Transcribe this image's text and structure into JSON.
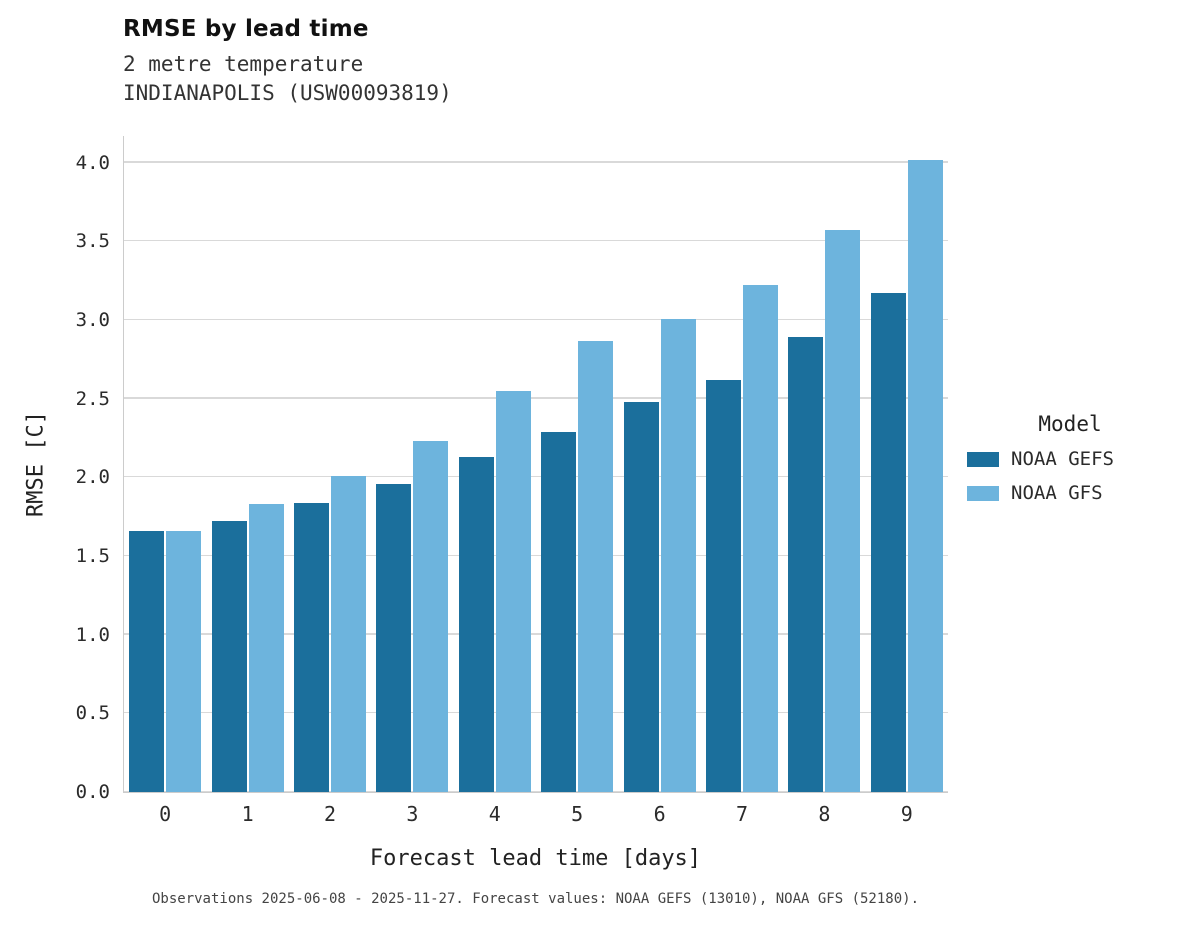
{
  "header": {
    "title": "RMSE by lead time",
    "subtitle_line1": "2 metre temperature",
    "subtitle_line2": "INDIANAPOLIS (USW00093819)"
  },
  "legend": {
    "title": "Model",
    "entries": [
      {
        "label": "NOAA GEFS",
        "color": "#1b6f9c"
      },
      {
        "label": "NOAA GFS",
        "color": "#6db4dd"
      }
    ]
  },
  "footer": {
    "note": "Observations 2025-06-08 - 2025-11-27. Forecast values: NOAA GEFS (13010), NOAA GFS (52180)."
  },
  "chart_data": {
    "type": "bar",
    "title": "RMSE by lead time",
    "subtitle": "2 metre temperature INDIANAPOLIS (USW00093819)",
    "xlabel": "Forecast lead time [days]",
    "ylabel": "RMSE [C]",
    "categories": [
      0,
      1,
      2,
      3,
      4,
      5,
      6,
      7,
      8,
      9
    ],
    "series": [
      {
        "name": "NOAA GEFS",
        "color": "#1b6f9c",
        "values": [
          1.66,
          1.72,
          1.84,
          1.96,
          2.13,
          2.29,
          2.48,
          2.62,
          2.89,
          3.17
        ]
      },
      {
        "name": "NOAA GFS",
        "color": "#6db4dd",
        "values": [
          1.66,
          1.83,
          2.01,
          2.23,
          2.55,
          2.87,
          3.01,
          3.22,
          3.57,
          4.02
        ]
      }
    ],
    "ylim": [
      0,
      4.17
    ],
    "yticks": [
      0.0,
      0.5,
      1.0,
      1.5,
      2.0,
      2.5,
      3.0,
      3.5,
      4.0
    ],
    "grid": true,
    "grid_color": "#d9d9d9",
    "legend_position": "right"
  }
}
